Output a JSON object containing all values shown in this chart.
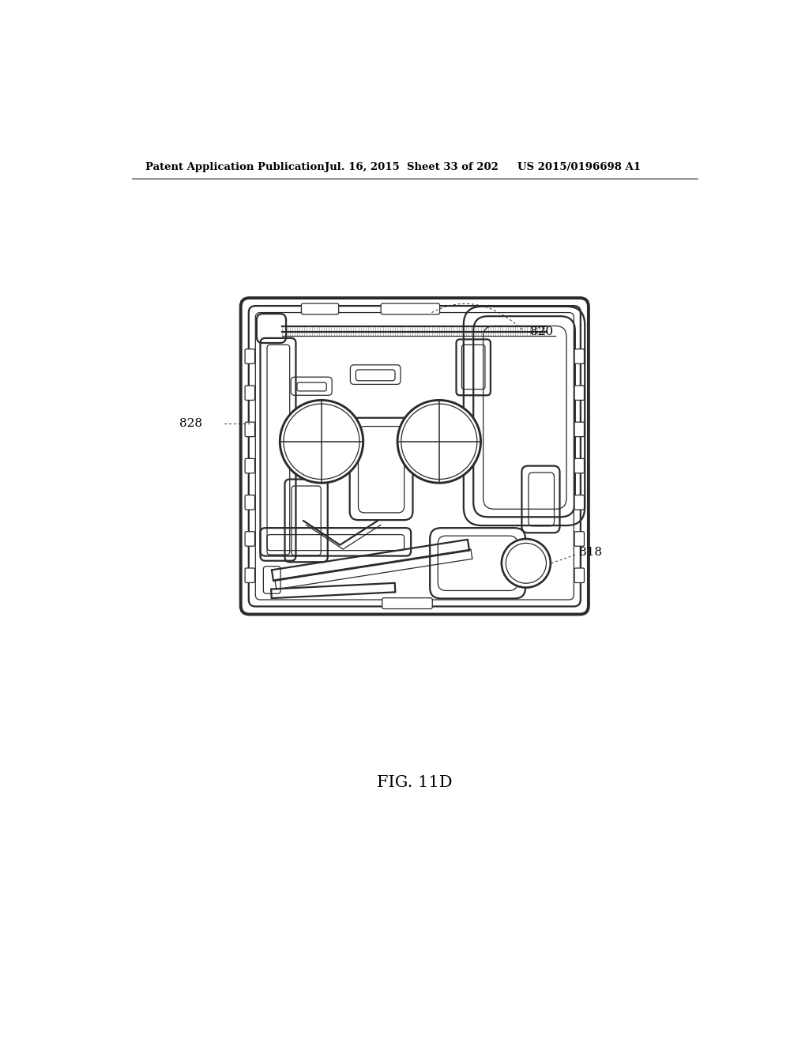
{
  "header_left": "Patent Application Publication",
  "header_mid": "Jul. 16, 2015  Sheet 33 of 202",
  "header_right": "US 2015/0196698 A1",
  "fig_label": "FIG. 11D",
  "label_820": "820",
  "label_828": "828",
  "label_818": "818",
  "bg_color": "#ffffff",
  "line_color": "#2a2a2a",
  "lw_thin": 0.9,
  "lw_med": 1.6,
  "lw_thick": 2.8
}
